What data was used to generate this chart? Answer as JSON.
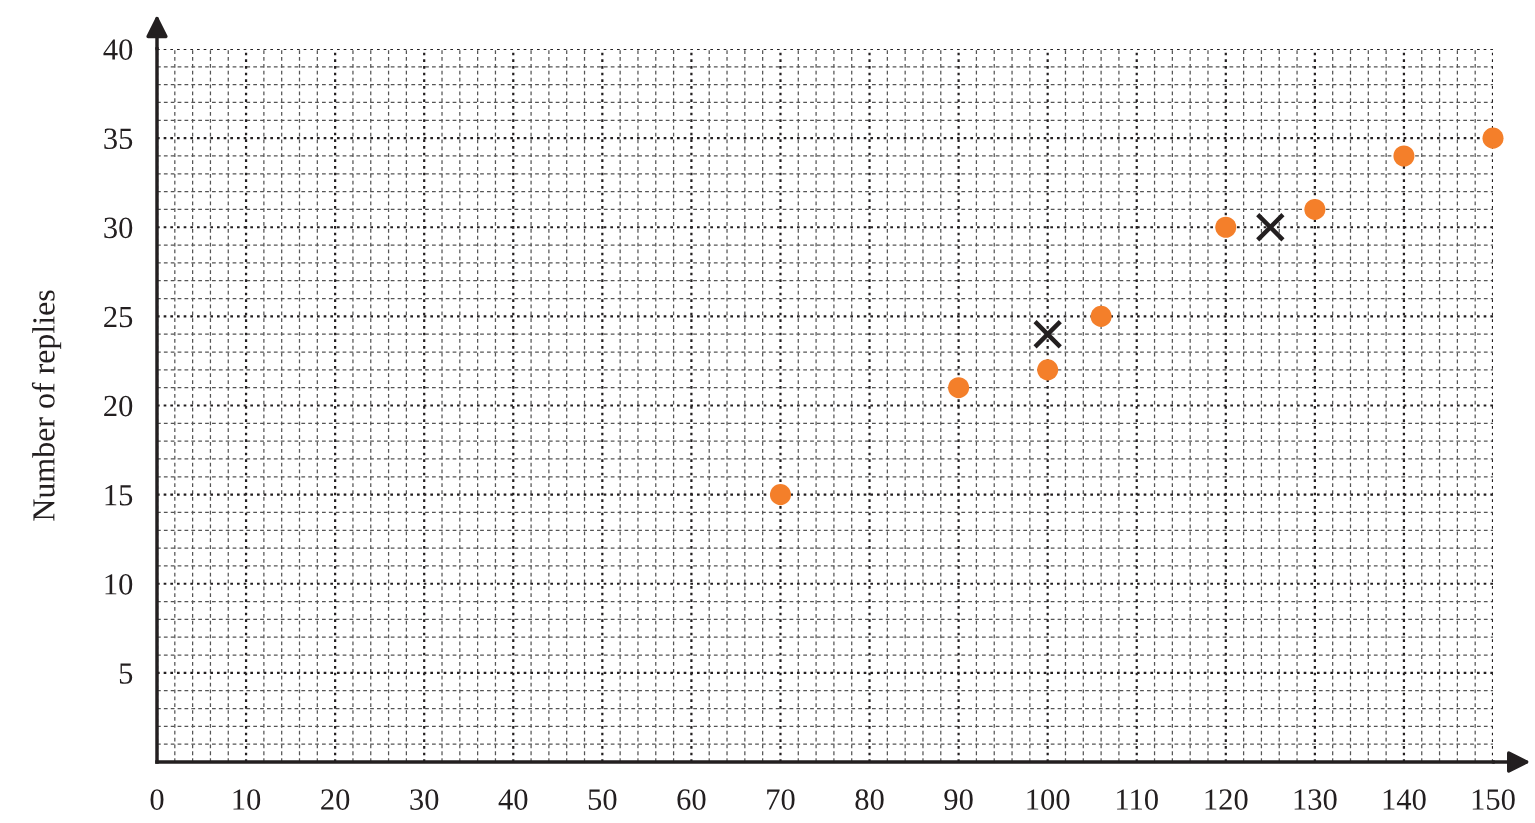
{
  "chart_data": {
    "type": "scatter",
    "ylabel": "Number of replies",
    "series": [
      {
        "color": "#f47f2a",
        "marker": "circle",
        "x": [
          70,
          90,
          100,
          106,
          120,
          130,
          140,
          150
        ],
        "values": [
          15,
          21,
          22,
          25,
          30,
          31,
          34,
          35
        ]
      },
      {
        "color": "#231f20",
        "marker": "cross",
        "x": [
          100,
          125
        ],
        "values": [
          24,
          30
        ]
      }
    ],
    "xlim": [
      0,
      150
    ],
    "ylim": [
      0,
      40
    ],
    "xticks": [
      {
        "value": 0,
        "label": "0"
      },
      10,
      20,
      30,
      40,
      50,
      60,
      70,
      80,
      90,
      100,
      110,
      120,
      130,
      140,
      150
    ],
    "yticks": [
      5,
      10,
      15,
      20,
      25,
      30,
      35,
      40
    ],
    "grid": true
  }
}
